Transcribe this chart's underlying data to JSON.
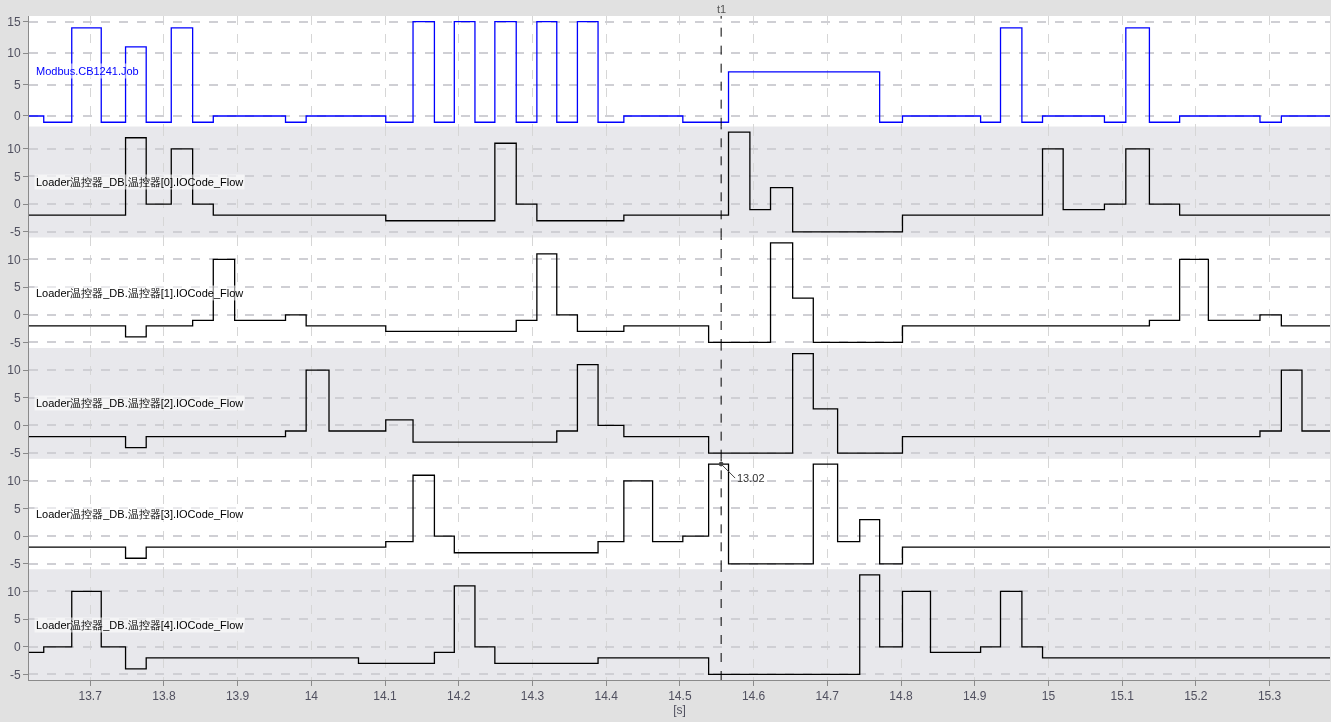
{
  "chart_data": [
    {
      "type": "step",
      "series": [
        {
          "name": "Modbus.CB1241.Job",
          "color": "#0000ff",
          "x": [
            13.617,
            13.637,
            13.675,
            13.715,
            13.748,
            13.776,
            13.81,
            13.839,
            13.867,
            13.965,
            13.993,
            14.101,
            14.138,
            14.167,
            14.194,
            14.222,
            14.249,
            14.278,
            14.306,
            14.333,
            14.361,
            14.389,
            14.424,
            14.504,
            14.566,
            14.771,
            14.802,
            14.908,
            14.935,
            14.964,
            14.992,
            15.076,
            15.105,
            15.137,
            15.178,
            15.287,
            15.316,
            15.382
          ],
          "values": [
            0,
            -1,
            14,
            -1,
            11,
            -1,
            14,
            -1,
            0,
            -1,
            0,
            -1,
            15,
            -1,
            15,
            -1,
            15,
            -1,
            15,
            -1,
            15,
            -1,
            0,
            -1,
            7,
            -1,
            0,
            -1,
            14,
            -1,
            0,
            -1,
            14,
            -1,
            0,
            -1,
            0,
            0
          ]
        }
      ],
      "xlim": [
        13.617,
        15.382
      ],
      "xticks": [
        13.7,
        13.8,
        13.9,
        14,
        14.1,
        14.2,
        14.3,
        14.4,
        14.5,
        14.6,
        14.7,
        14.8,
        14.9,
        15,
        15.1,
        15.2,
        15.3
      ],
      "ylim": [
        -1.7,
        15.9
      ],
      "yticks": [
        0,
        5,
        10,
        15
      ],
      "grid": true,
      "tick_labels": "y",
      "ref_lines": [
        {
          "axis": "x",
          "value": 14.556,
          "label": "t1",
          "line_style": "dashed",
          "color": "#000000"
        }
      ]
    },
    {
      "type": "step",
      "series": [
        {
          "name": "Loader温控器_DB.温控器[0].IOCode_Flow",
          "color": "#000000",
          "x": [
            13.617,
            13.748,
            13.776,
            13.81,
            13.839,
            13.867,
            14.101,
            14.249,
            14.278,
            14.306,
            14.424,
            14.566,
            14.595,
            14.623,
            14.653,
            14.802,
            14.992,
            15.02,
            15.076,
            15.105,
            15.137,
            15.178,
            15.382
          ],
          "values": [
            -2,
            12,
            0,
            10,
            0,
            -2,
            -3,
            11,
            0,
            -3,
            -2,
            13,
            -1,
            3,
            -5,
            -2,
            10,
            -1,
            0,
            10,
            0,
            -2,
            -2
          ]
        }
      ],
      "xlim": [
        13.617,
        15.382
      ],
      "xticks": [
        13.7,
        13.8,
        13.9,
        14,
        14.1,
        14.2,
        14.3,
        14.4,
        14.5,
        14.6,
        14.7,
        14.8,
        14.9,
        15,
        15.1,
        15.2,
        15.3
      ],
      "ylim": [
        -6,
        14
      ],
      "yticks": [
        -5,
        0,
        5,
        10
      ],
      "grid": true,
      "tick_labels": "y",
      "ref_lines": [
        {
          "axis": "x",
          "value": 14.556,
          "line_style": "dashed",
          "color": "#000000"
        }
      ]
    },
    {
      "type": "step",
      "series": [
        {
          "name": "Loader温控器_DB.温控器[1].IOCode_Flow",
          "color": "#000000",
          "x": [
            13.617,
            13.748,
            13.776,
            13.839,
            13.867,
            13.896,
            13.965,
            13.993,
            14.101,
            14.278,
            14.306,
            14.333,
            14.361,
            14.424,
            14.539,
            14.623,
            14.653,
            14.681,
            14.802,
            15.137,
            15.178,
            15.217,
            15.287,
            15.316,
            15.382
          ],
          "values": [
            -2,
            -4,
            -2,
            -1,
            10,
            -1,
            0,
            -2,
            -3,
            -1,
            11,
            0,
            -3,
            -2,
            -5,
            13,
            3,
            -5,
            -2,
            -1,
            10,
            -1,
            0,
            -2,
            -2
          ]
        }
      ],
      "xlim": [
        13.617,
        15.382
      ],
      "xticks": [
        13.7,
        13.8,
        13.9,
        14,
        14.1,
        14.2,
        14.3,
        14.4,
        14.5,
        14.6,
        14.7,
        14.8,
        14.9,
        15,
        15.1,
        15.2,
        15.3
      ],
      "ylim": [
        -6,
        14
      ],
      "yticks": [
        -5,
        0,
        5,
        10
      ],
      "grid": true,
      "tick_labels": "y",
      "ref_lines": [
        {
          "axis": "x",
          "value": 14.556,
          "line_style": "dashed",
          "color": "#000000"
        }
      ]
    },
    {
      "type": "step",
      "series": [
        {
          "name": "Loader温控器_DB.温控器[2].IOCode_Flow",
          "color": "#000000",
          "x": [
            13.617,
            13.748,
            13.776,
            13.965,
            13.993,
            14.024,
            14.101,
            14.138,
            14.333,
            14.361,
            14.389,
            14.424,
            14.539,
            14.653,
            14.681,
            14.714,
            14.802,
            15.287,
            15.316,
            15.344,
            15.382
          ],
          "values": [
            -2,
            -4,
            -2,
            -1,
            10,
            -1,
            1,
            -3,
            -1,
            11,
            0,
            -2,
            -5,
            13,
            3,
            -5,
            -2,
            -1,
            10,
            -1,
            -1
          ]
        }
      ],
      "xlim": [
        13.617,
        15.382
      ],
      "xticks": [
        13.7,
        13.8,
        13.9,
        14,
        14.1,
        14.2,
        14.3,
        14.4,
        14.5,
        14.6,
        14.7,
        14.8,
        14.9,
        15,
        15.1,
        15.2,
        15.3
      ],
      "ylim": [
        -6,
        14
      ],
      "yticks": [
        -5,
        0,
        5,
        10
      ],
      "grid": true,
      "tick_labels": "y",
      "ref_lines": [
        {
          "axis": "x",
          "value": 14.556,
          "line_style": "dashed",
          "color": "#000000"
        }
      ]
    },
    {
      "type": "step",
      "series": [
        {
          "name": "Loader温控器_DB.温控器[3].IOCode_Flow",
          "color": "#000000",
          "x": [
            13.617,
            13.748,
            13.776,
            14.101,
            14.138,
            14.167,
            14.194,
            14.389,
            14.424,
            14.463,
            14.504,
            14.539,
            14.566,
            14.681,
            14.714,
            14.744,
            14.771,
            14.802,
            15.382
          ],
          "values": [
            -2,
            -4,
            -2,
            -1,
            11,
            0,
            -3,
            -1,
            10,
            -1,
            0,
            13.02,
            -5,
            13,
            -1,
            3,
            -5,
            -2,
            -2
          ]
        }
      ],
      "xlim": [
        13.617,
        15.382
      ],
      "xticks": [
        13.7,
        13.8,
        13.9,
        14,
        14.1,
        14.2,
        14.3,
        14.4,
        14.5,
        14.6,
        14.7,
        14.8,
        14.9,
        15,
        15.1,
        15.2,
        15.3
      ],
      "ylim": [
        -6,
        14
      ],
      "yticks": [
        -5,
        0,
        5,
        10
      ],
      "grid": true,
      "tick_labels": "y",
      "ref_lines": [
        {
          "axis": "x",
          "value": 14.556,
          "line_style": "dashed",
          "color": "#000000"
        }
      ],
      "annotations": [
        {
          "text": "13.02",
          "x": 14.556,
          "y": 13.02
        }
      ]
    },
    {
      "type": "step",
      "series": [
        {
          "name": "Loader温控器_DB.温控器[4].IOCode_Flow",
          "color": "#000000",
          "x": [
            13.617,
            13.637,
            13.675,
            13.715,
            13.748,
            13.776,
            14.064,
            14.167,
            14.194,
            14.222,
            14.249,
            14.389,
            14.539,
            14.744,
            14.771,
            14.802,
            14.84,
            14.908,
            14.935,
            14.964,
            14.992,
            15.382
          ],
          "values": [
            -1,
            0,
            10,
            0,
            -4,
            -2,
            -3,
            -1,
            11,
            0,
            -3,
            -2,
            -5,
            13,
            0,
            10,
            -1,
            0,
            10,
            0,
            -2,
            -2
          ]
        }
      ],
      "xlim": [
        13.617,
        15.382
      ],
      "xticks": [
        13.7,
        13.8,
        13.9,
        14,
        14.1,
        14.2,
        14.3,
        14.4,
        14.5,
        14.6,
        14.7,
        14.8,
        14.9,
        15,
        15.1,
        15.2,
        15.3
      ],
      "ylim": [
        -6,
        14
      ],
      "yticks": [
        -5,
        0,
        5,
        10
      ],
      "grid": true,
      "xlabel": "[s]",
      "ref_lines": [
        {
          "axis": "x",
          "value": 14.556,
          "line_style": "dashed",
          "color": "#000000"
        }
      ]
    }
  ]
}
